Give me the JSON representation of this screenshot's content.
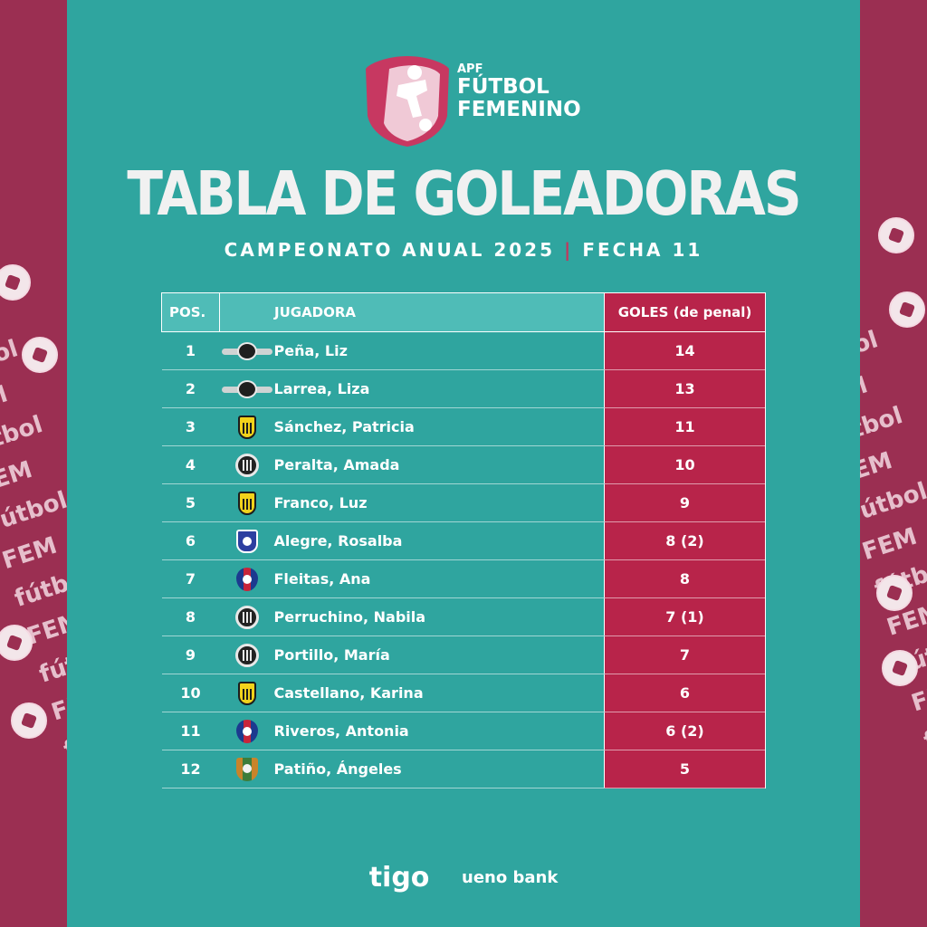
{
  "brand": {
    "apf": "APF",
    "line1": "FÚTBOL",
    "line2": "FEMENINO"
  },
  "title": "TABLA DE GOLEADORAS",
  "subtitle": {
    "left": "CAMPEONATO ANUAL 2025",
    "separator": "|",
    "right": "FECHA 11"
  },
  "table": {
    "headers": {
      "pos": "POS.",
      "jugadora": "JUGADORA",
      "goles": "GOLES (de penal)"
    },
    "rows": [
      {
        "pos": "1",
        "name": "Peña, Liz",
        "goals": "14",
        "crest": "wings"
      },
      {
        "pos": "2",
        "name": "Larrea, Liza",
        "goals": "13",
        "crest": "wings"
      },
      {
        "pos": "3",
        "name": "Sánchez, Patricia",
        "goals": "11",
        "crest": "yellow"
      },
      {
        "pos": "4",
        "name": "Peralta, Amada",
        "goals": "10",
        "crest": "round"
      },
      {
        "pos": "5",
        "name": "Franco, Luz",
        "goals": "9",
        "crest": "yellow"
      },
      {
        "pos": "6",
        "name": "Alegre, Rosalba",
        "goals": "8 (2)",
        "crest": "blue"
      },
      {
        "pos": "7",
        "name": "Fleitas, Ana",
        "goals": "8",
        "crest": "cerro"
      },
      {
        "pos": "8",
        "name": "Perruchino, Nabila",
        "goals": "7 (1)",
        "crest": "round"
      },
      {
        "pos": "9",
        "name": "Portillo, María",
        "goals": "7",
        "crest": "round"
      },
      {
        "pos": "10",
        "name": "Castellano, Karina",
        "goals": "6",
        "crest": "yellow"
      },
      {
        "pos": "11",
        "name": "Riveros, Antonia",
        "goals": "6 (2)",
        "crest": "cerro"
      },
      {
        "pos": "12",
        "name": "Patiño, Ángeles",
        "goals": "5",
        "crest": "green"
      }
    ]
  },
  "sponsors": {
    "tigo": "tigo",
    "ueno": "ueno bank"
  },
  "colors": {
    "panel": "#2fa59f",
    "accent": "#b8244a",
    "side": "#9b2f52"
  }
}
